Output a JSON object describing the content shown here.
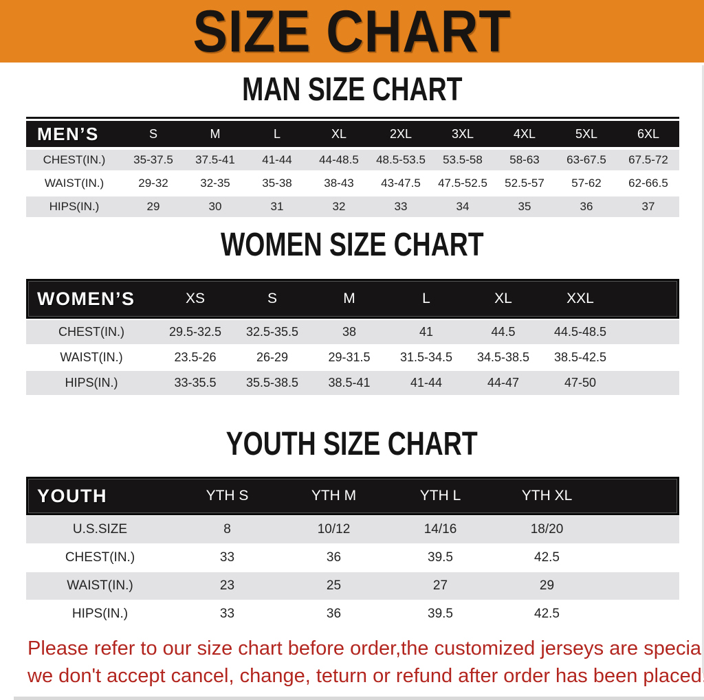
{
  "banner": {
    "title": "SIZE CHART"
  },
  "colors": {
    "banner_bg": "#E5831E",
    "table_header_bg": "#161414",
    "row_stripe": "#E2E2E4",
    "footer_text": "#B3261F",
    "heading_text": "#151515"
  },
  "sections": [
    {
      "heading": "MAN SIZE CHART",
      "corner": "MEN’S",
      "columns": [
        "S",
        "M",
        "L",
        "XL",
        "2XL",
        "3XL",
        "4XL",
        "5XL",
        "6XL"
      ],
      "rows": [
        {
          "label": "CHEST(IN.)",
          "values": [
            "35-37.5",
            "37.5-41",
            "41-44",
            "44-48.5",
            "48.5-53.5",
            "53.5-58",
            "58-63",
            "63-67.5",
            "67.5-72"
          ]
        },
        {
          "label": "WAIST(IN.)",
          "values": [
            "29-32",
            "32-35",
            "35-38",
            "38-43",
            "43-47.5",
            "47.5-52.5",
            "52.5-57",
            "57-62",
            "62-66.5"
          ]
        },
        {
          "label": "HIPS(IN.)",
          "values": [
            "29",
            "30",
            "31",
            "32",
            "33",
            "34",
            "35",
            "36",
            "37"
          ]
        }
      ]
    },
    {
      "heading": "WOMEN SIZE CHART",
      "corner": "WOMEN’S",
      "columns": [
        "XS",
        "S",
        "M",
        "L",
        "XL",
        "XXL"
      ],
      "rows": [
        {
          "label": "CHEST(IN.)",
          "values": [
            "29.5-32.5",
            "32.5-35.5",
            "38",
            "41",
            "44.5",
            "44.5-48.5"
          ]
        },
        {
          "label": "WAIST(IN.)",
          "values": [
            "23.5-26",
            "26-29",
            "29-31.5",
            "31.5-34.5",
            "34.5-38.5",
            "38.5-42.5"
          ]
        },
        {
          "label": "HIPS(IN.)",
          "values": [
            "33-35.5",
            "35.5-38.5",
            "38.5-41",
            "41-44",
            "44-47",
            "47-50"
          ]
        }
      ]
    },
    {
      "heading": "YOUTH SIZE CHART",
      "corner": "YOUTH",
      "columns": [
        "YTH S",
        "YTH M",
        "YTH L",
        "YTH XL"
      ],
      "rows": [
        {
          "label": "U.S.SIZE",
          "values": [
            "8",
            "10/12",
            "14/16",
            "18/20"
          ]
        },
        {
          "label": "CHEST(IN.)",
          "values": [
            "33",
            "36",
            "39.5",
            "42.5"
          ]
        },
        {
          "label": "WAIST(IN.)",
          "values": [
            "23",
            "25",
            "27",
            "29"
          ]
        },
        {
          "label": "HIPS(IN.)",
          "values": [
            "33",
            "36",
            "39.5",
            "42.5"
          ]
        }
      ]
    }
  ],
  "footer": {
    "lines": [
      "Please refer to our size chart before order,the customized jerseys are special products,",
      "we don't accept cancel, change, teturn or refund after order has been placed!"
    ]
  }
}
